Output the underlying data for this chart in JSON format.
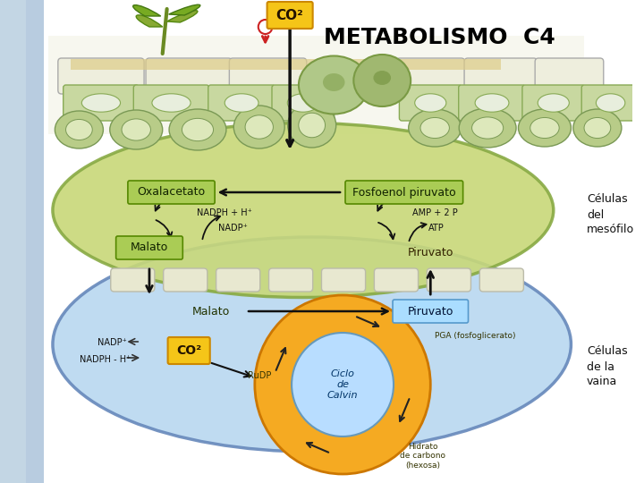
{
  "bg_color": "#ffffff",
  "left_bg_color": "#c8dce8",
  "title": "METABOLISMO  C4",
  "title_fontsize": 18,
  "title_fontweight": "bold",
  "co2_top_label": "CO²",
  "co2_box_color": "#f5c518",
  "mesofilo_color": "#c8d878",
  "mesofilo_edge": "#99bb44",
  "vaina_color": "#c0d8f0",
  "vaina_edge": "#7799cc",
  "label_oxalacetato": "Oxalacetato",
  "label_fosfoenol": "Fosfoenol piruvato",
  "label_malato_top": "Malato",
  "label_piruvato_top": "Piruvato",
  "label_malato_bot": "Malato",
  "label_piruvato_bot": "Piruvato",
  "label_co2_bot": "CO²",
  "label_celulas_mesofilo": "Células\ndel\nmesófilo",
  "label_celulas_vaina": "Células\nde la\nvaina",
  "label_nadph": "NADPH + H⁺",
  "label_nadp": "NADP⁺",
  "label_amp": "AMP + 2 P",
  "label_atp": "ATP",
  "label_ciclo": "Ciclo\nde\nCalvin",
  "label_rudp": "RuDP",
  "label_pga": "PGA (fosfoglicerato)",
  "label_hidrato": "Hidrato\nde carbono\n(hexosa)",
  "label_nadp_bot": "NADP⁺",
  "label_nadph_bot": "NADPH - H⁺"
}
